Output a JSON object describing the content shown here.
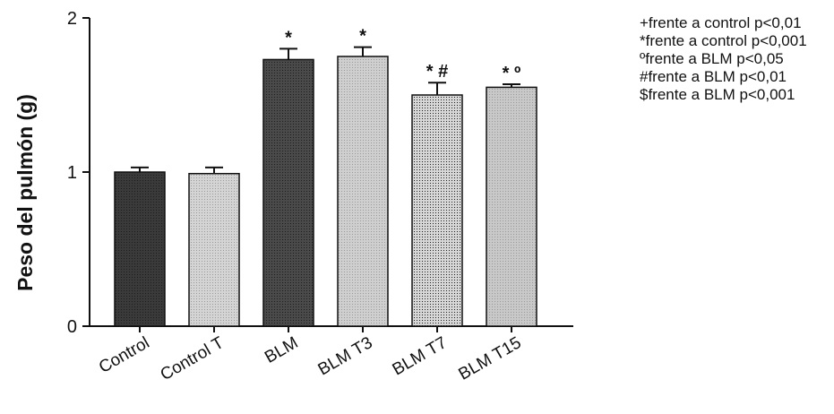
{
  "chart_data": {
    "type": "bar",
    "ylabel": "Peso del pulmón (g)",
    "ylim": [
      0,
      2
    ],
    "yticks": [
      "0",
      "1",
      "2"
    ],
    "categories": [
      "Control",
      "Control T",
      "BLM",
      "BLM T3",
      "BLM T7",
      "BLM T15"
    ],
    "values": [
      1.0,
      0.99,
      1.73,
      1.75,
      1.5,
      1.55
    ],
    "errors": [
      0.03,
      0.04,
      0.07,
      0.06,
      0.08,
      0.02
    ],
    "annotations": [
      "",
      "",
      "*",
      "*",
      "* #",
      "* º"
    ],
    "bar_colors": [
      "#3a3a3a",
      "#d4d4d4",
      "#4a4a4a",
      "#cfcfcf",
      "#d6d6d6",
      "#c8c8c8"
    ],
    "legend_position": "top-right",
    "legend": [
      "+frente a control p<0,01",
      "*frente a control p<0,001",
      "ºfrente a BLM p<0,05",
      "#frente a BLM p<0,01",
      "$frente a BLM p<0,001"
    ]
  }
}
